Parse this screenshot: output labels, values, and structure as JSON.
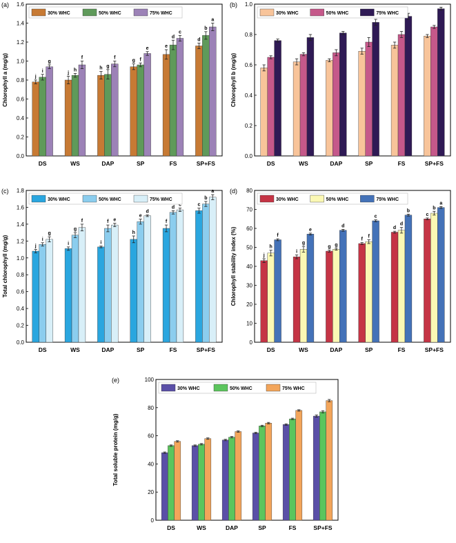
{
  "colors": {
    "a": [
      "#c77a34",
      "#5f9a5a",
      "#9c82b7"
    ],
    "b": [
      "#f8c49a",
      "#c5588a",
      "#2f1a55"
    ],
    "c": [
      "#2aa6df",
      "#8bcdee",
      "#d8eff8"
    ],
    "d": [
      "#c53445",
      "#fbf8b4",
      "#4472b8"
    ],
    "e": [
      "#5a4fa7",
      "#5cc55d",
      "#f3a55a"
    ]
  },
  "chart_data": [
    {
      "panel": "(a)",
      "type": "bar",
      "ylabel": "Chlorophyll a (mg/g)",
      "ylim": [
        0.0,
        1.6
      ],
      "yticks": [
        "0.0",
        "0.2",
        "0.4",
        "0.6",
        "0.8",
        "1.0",
        "1.2",
        "1.4",
        "1.6"
      ],
      "categories": [
        "DS",
        "WS",
        "DAP",
        "SP",
        "FS",
        "SP+FS"
      ],
      "legend_position": "top-left",
      "series": [
        {
          "name": "30% WHC",
          "values": [
            0.78,
            0.8,
            0.85,
            0.94,
            1.07,
            1.16
          ],
          "errors": [
            0.02,
            0.04,
            0.04,
            0.03,
            0.05,
            0.03
          ],
          "letters": [
            "j",
            "j",
            "h",
            "g",
            "e",
            "d"
          ]
        },
        {
          "name": "50% WHC",
          "values": [
            0.83,
            0.85,
            0.86,
            0.96,
            1.17,
            1.27
          ],
          "errors": [
            0.03,
            0.02,
            0.05,
            0.02,
            0.05,
            0.04
          ],
          "letters": [
            "i",
            "h",
            "g",
            "f",
            "d",
            "b"
          ]
        },
        {
          "name": "75% WHC",
          "values": [
            0.94,
            0.96,
            0.97,
            1.08,
            1.24,
            1.36
          ],
          "errors": [
            0.02,
            0.04,
            0.03,
            0.02,
            0.03,
            0.04
          ],
          "letters": [
            "g",
            "f",
            "f",
            "e",
            "c",
            "a"
          ]
        }
      ]
    },
    {
      "panel": "(b)",
      "type": "bar",
      "ylabel": "Chlorophyll b (mg/g)",
      "ylim": [
        0.0,
        1.0
      ],
      "yticks": [
        "0.0",
        "0.2",
        "0.4",
        "0.6",
        "0.8",
        "1.0"
      ],
      "categories": [
        "DS",
        "WS",
        "DAP",
        "SP",
        "FS",
        "SP+FS"
      ],
      "legend_position": "top-left",
      "series": [
        {
          "name": "30% WHC",
          "values": [
            0.58,
            0.62,
            0.63,
            0.69,
            0.73,
            0.79
          ],
          "errors": [
            0.02,
            0.02,
            0.01,
            0.02,
            0.02,
            0.01
          ],
          "letters": [
            "",
            "",
            "",
            "",
            "",
            ""
          ]
        },
        {
          "name": "50% WHC",
          "values": [
            0.65,
            0.67,
            0.68,
            0.75,
            0.8,
            0.85
          ],
          "errors": [
            0.01,
            0.01,
            0.02,
            0.03,
            0.02,
            0.01
          ],
          "letters": [
            "",
            "",
            "",
            "",
            "",
            ""
          ]
        },
        {
          "name": "75% WHC",
          "values": [
            0.76,
            0.78,
            0.81,
            0.88,
            0.92,
            0.97
          ],
          "errors": [
            0.01,
            0.02,
            0.01,
            0.02,
            0.02,
            0.01
          ],
          "letters": [
            "",
            "",
            "",
            "",
            "",
            ""
          ]
        }
      ]
    },
    {
      "panel": "(c)",
      "type": "bar",
      "ylabel": "Total chlorophyll (mg/g)",
      "ylim": [
        0.0,
        1.8
      ],
      "yticks": [
        "0.0",
        "0.2",
        "0.4",
        "0.6",
        "0.8",
        "1.0",
        "1.2",
        "1.4",
        "1.6",
        "1.8"
      ],
      "categories": [
        "DS",
        "WS",
        "DAP",
        "SP",
        "FS",
        "SP+FS"
      ],
      "legend_position": "top-left",
      "series": [
        {
          "name": "30% WHC",
          "values": [
            1.08,
            1.11,
            1.13,
            1.22,
            1.35,
            1.56
          ],
          "errors": [
            0.02,
            0.02,
            0.01,
            0.04,
            0.04,
            0.03
          ],
          "letters": [
            "j",
            "i",
            "i",
            "h",
            "f",
            "c"
          ]
        },
        {
          "name": "50% WHC",
          "values": [
            1.16,
            1.27,
            1.35,
            1.43,
            1.54,
            1.64
          ],
          "errors": [
            0.02,
            0.03,
            0.04,
            0.03,
            0.02,
            0.03
          ],
          "letters": [
            "i",
            "g",
            "f",
            "e",
            "d",
            "b"
          ]
        },
        {
          "name": "75% WHC",
          "values": [
            1.22,
            1.36,
            1.39,
            1.5,
            1.57,
            1.72
          ],
          "errors": [
            0.03,
            0.04,
            0.02,
            0.01,
            0.02,
            0.03
          ],
          "letters": [
            "g",
            "f",
            "e",
            "d",
            "c",
            "a"
          ]
        }
      ]
    },
    {
      "panel": "(d)",
      "type": "bar",
      "ylabel": "Chlorophyll stability index (%)",
      "ylim": [
        0,
        80
      ],
      "yticks": [
        "0",
        "10",
        "20",
        "30",
        "40",
        "50",
        "60",
        "70",
        "80"
      ],
      "categories": [
        "DS",
        "WS",
        "DAP",
        "SP",
        "FS",
        "SP+FS"
      ],
      "legend_position": "top-left",
      "series": [
        {
          "name": "30% WHC",
          "values": [
            43,
            45,
            48,
            52,
            58,
            65
          ],
          "errors": [
            1,
            1,
            0.5,
            0.5,
            0.5,
            0.5
          ],
          "letters": [
            "j",
            "i",
            "g",
            "f",
            "d",
            "c"
          ]
        },
        {
          "name": "50% WHC",
          "values": [
            47,
            49,
            49,
            53,
            59,
            68
          ],
          "errors": [
            1.5,
            1.5,
            0.5,
            1,
            1.5,
            1
          ],
          "letters": [
            "h",
            "g",
            "g",
            "f",
            "d",
            "b"
          ]
        },
        {
          "name": "75% WHC",
          "values": [
            54,
            57,
            59,
            64,
            67,
            71
          ],
          "errors": [
            0.5,
            0.5,
            0.5,
            0.5,
            0.5,
            0.5
          ],
          "letters": [
            "f",
            "e",
            "d",
            "c",
            "b",
            "a"
          ]
        }
      ]
    },
    {
      "panel": "(e)",
      "type": "bar",
      "ylabel": "Total soluble protein (mg/g)",
      "ylim": [
        0,
        100
      ],
      "yticks": [
        "0",
        "20",
        "40",
        "60",
        "80",
        "100"
      ],
      "categories": [
        "DS",
        "WS",
        "DAP",
        "SP",
        "FS",
        "SP+FS"
      ],
      "legend_position": "top-left",
      "series": [
        {
          "name": "30% WHC",
          "values": [
            48,
            53,
            57,
            62,
            68,
            74
          ],
          "errors": [
            0.5,
            0.5,
            0.5,
            0.5,
            0.5,
            0.8
          ],
          "letters": [
            "",
            "",
            "",
            "",
            "",
            ""
          ]
        },
        {
          "name": "50% WHC",
          "values": [
            53,
            54,
            59,
            67,
            72,
            77
          ],
          "errors": [
            0.5,
            0.5,
            0.5,
            0.5,
            0.5,
            0.8
          ],
          "letters": [
            "",
            "",
            "",
            "",
            "",
            ""
          ]
        },
        {
          "name": "75% WHC",
          "values": [
            56,
            58,
            63,
            69,
            78,
            85
          ],
          "errors": [
            0.5,
            0.5,
            0.5,
            0.5,
            0.5,
            0.8
          ],
          "letters": [
            "",
            "",
            "",
            "",
            "",
            ""
          ]
        }
      ]
    }
  ]
}
